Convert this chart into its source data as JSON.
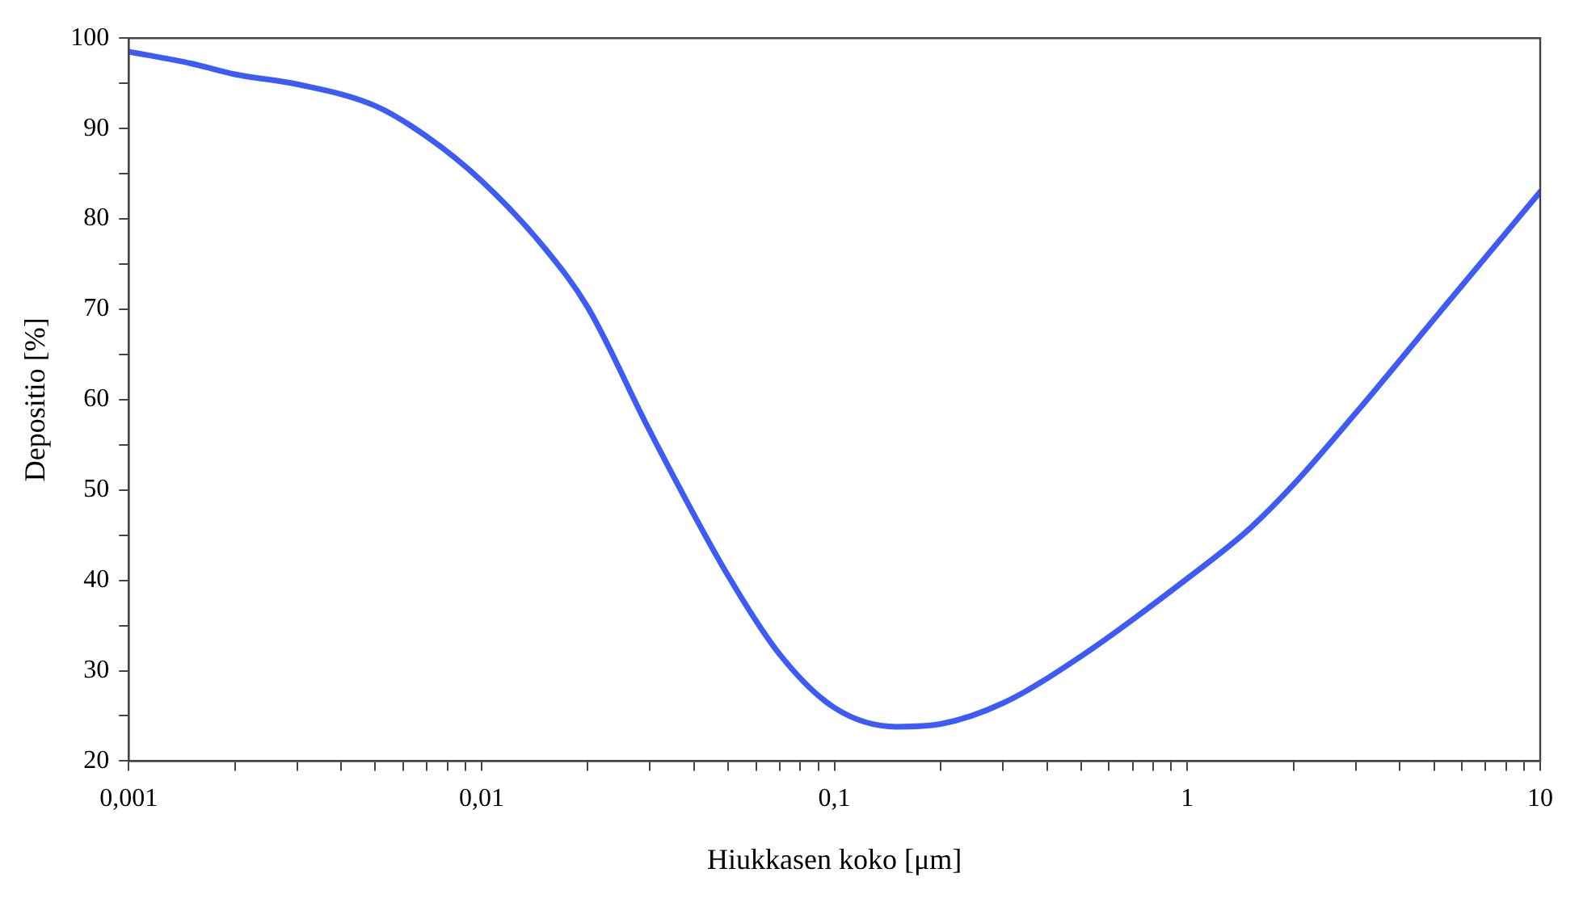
{
  "chart_data": {
    "type": "line",
    "xlabel": "Hiukkasen koko [μm]",
    "ylabel": "Depositio [%]",
    "x": [
      0.001,
      0.0015,
      0.002,
      0.003,
      0.005,
      0.007,
      0.01,
      0.015,
      0.02,
      0.03,
      0.05,
      0.07,
      0.1,
      0.15,
      0.2,
      0.3,
      0.5,
      1,
      1.5,
      2,
      3,
      5,
      10
    ],
    "series": [
      {
        "color": "#3d5cf5",
        "values": [
          98.5,
          97.2,
          96.0,
          94.9,
          92.5,
          89.1,
          84.2,
          76.9,
          70.2,
          56.5,
          40.5,
          31.8,
          25.9,
          23.8,
          24.1,
          26.4,
          31.6,
          40.2,
          45.7,
          50.6,
          58.5,
          68.9,
          83.0
        ]
      }
    ],
    "log": "x",
    "xlim": [
      0.001,
      10
    ],
    "xticks": [
      {
        "value": 0.001,
        "label": "0,001"
      },
      {
        "value": 0.002,
        "label": null
      },
      {
        "value": 0.003,
        "label": null
      },
      {
        "value": 0.004,
        "label": null
      },
      {
        "value": 0.005,
        "label": null
      },
      {
        "value": 0.006,
        "label": null
      },
      {
        "value": 0.007,
        "label": null
      },
      {
        "value": 0.008,
        "label": null
      },
      {
        "value": 0.009,
        "label": null
      },
      {
        "value": 0.01,
        "label": "0,01"
      },
      {
        "value": 0.02,
        "label": null
      },
      {
        "value": 0.03,
        "label": null
      },
      {
        "value": 0.04,
        "label": null
      },
      {
        "value": 0.05,
        "label": null
      },
      {
        "value": 0.06,
        "label": null
      },
      {
        "value": 0.07,
        "label": null
      },
      {
        "value": 0.08,
        "label": null
      },
      {
        "value": 0.09,
        "label": null
      },
      {
        "value": 0.1,
        "label": "0,1"
      },
      {
        "value": 0.2,
        "label": null
      },
      {
        "value": 0.3,
        "label": null
      },
      {
        "value": 0.4,
        "label": null
      },
      {
        "value": 0.5,
        "label": null
      },
      {
        "value": 0.6,
        "label": null
      },
      {
        "value": 0.7,
        "label": null
      },
      {
        "value": 0.8,
        "label": null
      },
      {
        "value": 0.9,
        "label": null
      },
      1,
      {
        "value": 2,
        "label": null
      },
      {
        "value": 3,
        "label": null
      },
      {
        "value": 4,
        "label": null
      },
      {
        "value": 5,
        "label": null
      },
      {
        "value": 6,
        "label": null
      },
      {
        "value": 7,
        "label": null
      },
      {
        "value": 8,
        "label": null
      },
      {
        "value": 9,
        "label": null
      },
      10
    ],
    "ylim": [
      20,
      100
    ],
    "yticks": [
      20,
      {
        "value": 25,
        "label": null
      },
      30,
      {
        "value": 35,
        "label": null
      },
      40,
      {
        "value": 45,
        "label": null
      },
      50,
      {
        "value": 55,
        "label": null
      },
      60,
      {
        "value": 65,
        "label": null
      },
      70,
      {
        "value": 75,
        "label": null
      },
      80,
      {
        "value": 85,
        "label": null
      },
      90,
      {
        "value": 95,
        "label": null
      },
      100
    ],
    "grid": false,
    "legend": false,
    "marker": "none",
    "line_style": "solid"
  }
}
